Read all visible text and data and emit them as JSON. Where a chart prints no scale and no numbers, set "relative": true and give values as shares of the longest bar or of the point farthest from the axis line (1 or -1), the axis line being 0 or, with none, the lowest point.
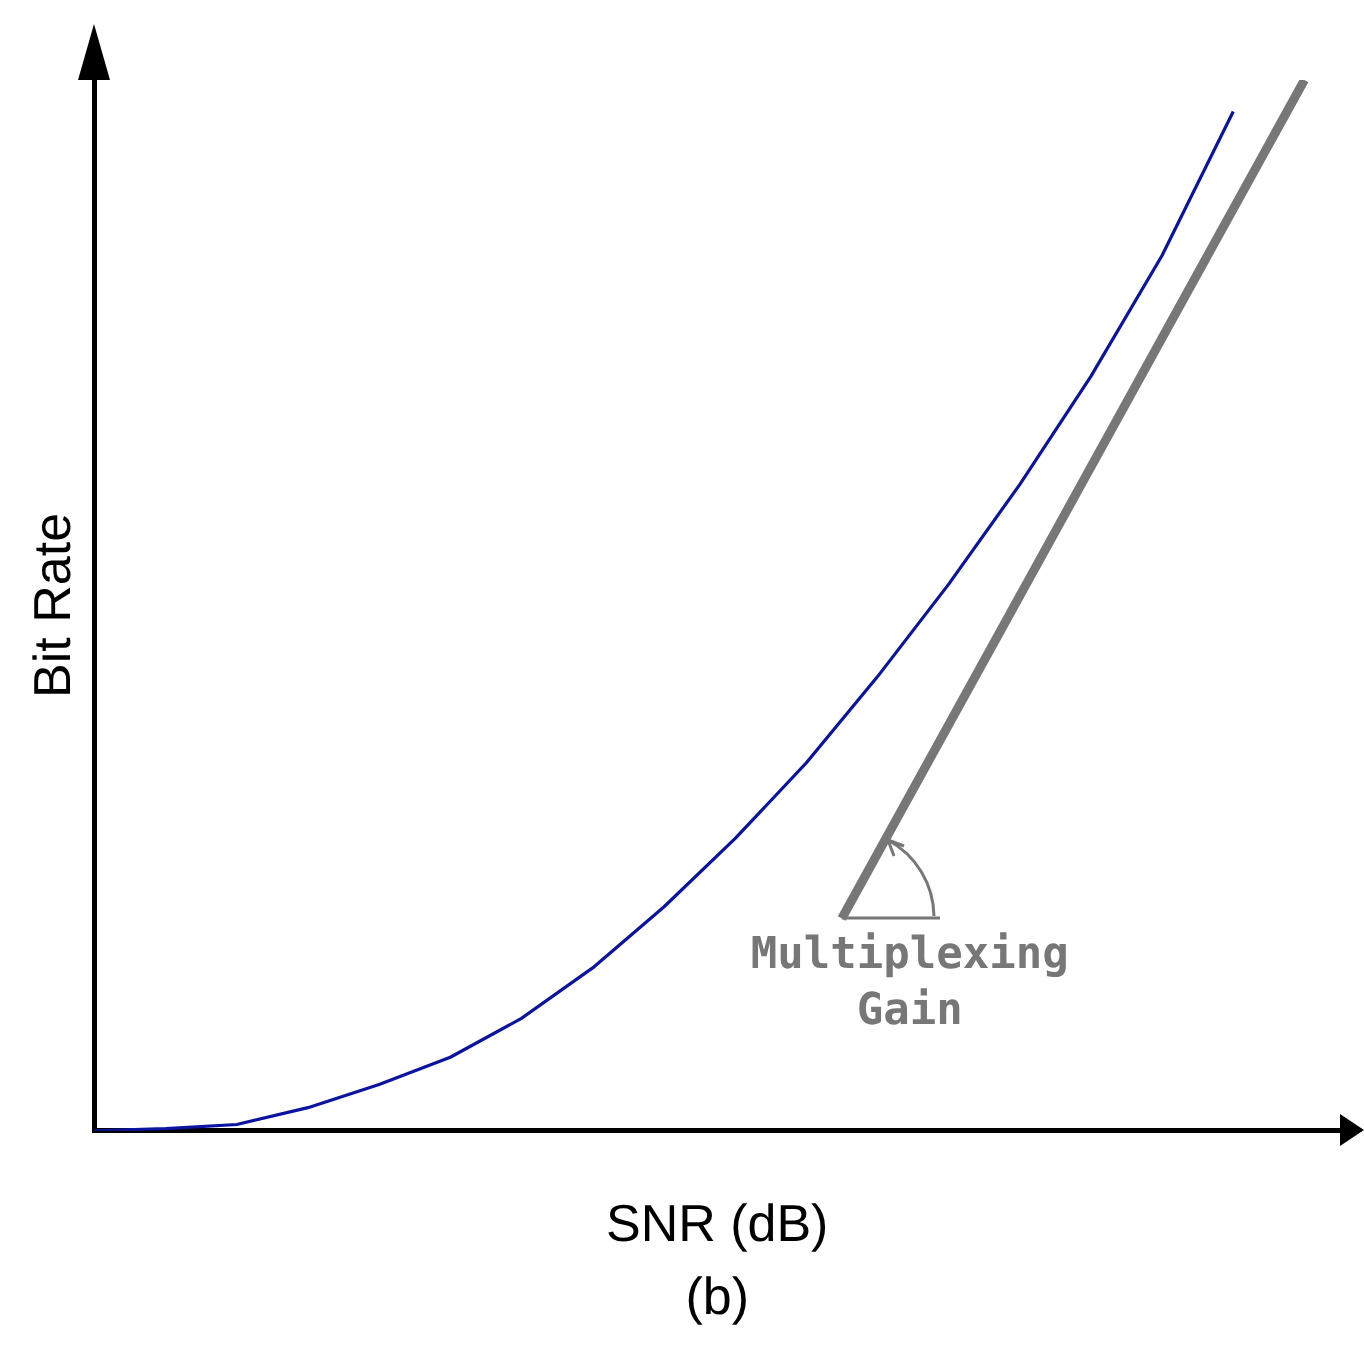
{
  "chart_data": {
    "type": "line",
    "relative": true,
    "xlabel": "SNR (dB)",
    "ylabel": "Bit Rate",
    "grid": false,
    "legend": false,
    "marker": "none",
    "line_style": "solid",
    "categories": [
      null,
      null,
      null,
      null,
      null,
      null,
      null,
      null,
      null,
      null,
      null,
      null,
      null,
      null,
      null,
      null,
      null,
      null,
      null,
      null,
      null,
      null,
      null,
      null,
      null,
      null,
      null,
      null,
      null,
      null,
      null,
      null,
      null,
      null,
      null,
      null
    ],
    "series": [
      {
        "color": "#0a14a0",
        "values": [
          0,
          null,
          0.002,
          null,
          0.006,
          null,
          0.022,
          null,
          0.044,
          null,
          0.07,
          null,
          0.107,
          null,
          0.155,
          null,
          0.213,
          null,
          0.278,
          null,
          0.35,
          null,
          0.432,
          null,
          0.52,
          null,
          0.615,
          null,
          0.718,
          null,
          0.833,
          null,
          0.97,
          null,
          null,
          null
        ]
      },
      {
        "color": "#777777",
        "values": [
          null,
          null,
          null,
          null,
          null,
          null,
          null,
          null,
          null,
          null,
          null,
          null,
          null,
          null,
          null,
          null,
          null,
          null,
          null,
          null,
          null,
          0.202,
          null,
          null,
          null,
          null,
          null,
          null,
          null,
          null,
          null,
          null,
          null,
          null,
          1,
          null
        ]
      }
    ],
    "annotations": [
      "Multiplexing Gain",
      "(b)"
    ]
  }
}
